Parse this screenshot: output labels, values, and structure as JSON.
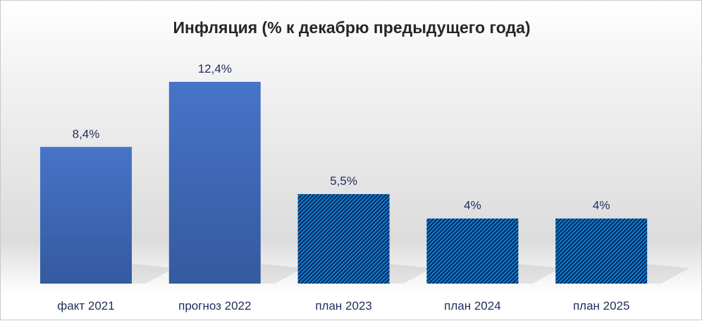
{
  "chart_data": {
    "type": "bar",
    "title": "Инфляция  (% к декабрю предыдущего года)",
    "categories": [
      "факт 2021",
      "прогноз 2022",
      "план 2023",
      "план 2024",
      "план 2025"
    ],
    "values": [
      8.4,
      12.4,
      5.5,
      4,
      4
    ],
    "data_labels": [
      "8,4%",
      "12,4%",
      "5,5%",
      "4%",
      "4%"
    ],
    "styles": [
      "solid",
      "solid",
      "hatched",
      "hatched",
      "hatched"
    ],
    "xlabel": "",
    "ylabel": "",
    "ylim": [
      0,
      12.4
    ],
    "grid": false,
    "legend": "none",
    "colors": {
      "solid_top": "#4774c8",
      "solid_bottom": "#345a9f",
      "hatch_bg": "#0a78d0",
      "hatch_line": "#0a1a3a",
      "label": "#1f2d5a",
      "title": "#262626"
    }
  }
}
